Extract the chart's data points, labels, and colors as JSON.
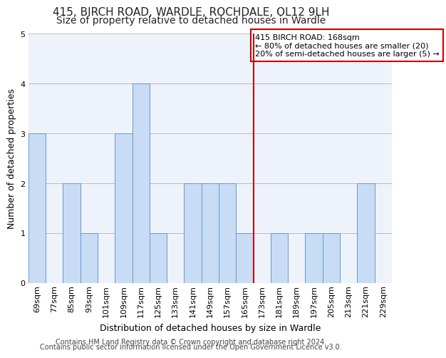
{
  "title": "415, BIRCH ROAD, WARDLE, ROCHDALE, OL12 9LH",
  "subtitle": "Size of property relative to detached houses in Wardle",
  "xlabel": "Distribution of detached houses by size in Wardle",
  "ylabel": "Number of detached properties",
  "categories": [
    "69sqm",
    "77sqm",
    "85sqm",
    "93sqm",
    "101sqm",
    "109sqm",
    "117sqm",
    "125sqm",
    "133sqm",
    "141sqm",
    "149sqm",
    "157sqm",
    "165sqm",
    "173sqm",
    "181sqm",
    "189sqm",
    "197sqm",
    "205sqm",
    "213sqm",
    "221sqm",
    "229sqm"
  ],
  "values": [
    3,
    0,
    2,
    1,
    0,
    3,
    4,
    1,
    0,
    2,
    2,
    2,
    1,
    0,
    1,
    0,
    1,
    1,
    0,
    2,
    0
  ],
  "bar_color": "#c9dcf5",
  "bar_edge_color": "#6699cc",
  "grid_color": "#bbbbbb",
  "background_color": "#eef2fb",
  "annotation_text": "415 BIRCH ROAD: 168sqm\n← 80% of detached houses are smaller (20)\n20% of semi-detached houses are larger (5) →",
  "annotation_box_facecolor": "#ffffff",
  "annotation_box_edgecolor": "#cc0000",
  "red_line_index": 12,
  "ylim": [
    0,
    5
  ],
  "yticks": [
    0,
    1,
    2,
    3,
    4,
    5
  ],
  "footer_line1": "Contains HM Land Registry data © Crown copyright and database right 2024.",
  "footer_line2": "Contains public sector information licensed under the Open Government Licence v3.0.",
  "title_fontsize": 11,
  "subtitle_fontsize": 10,
  "ylabel_fontsize": 9,
  "xlabel_fontsize": 9,
  "tick_fontsize": 8,
  "annotation_fontsize": 8,
  "footer_fontsize": 7
}
